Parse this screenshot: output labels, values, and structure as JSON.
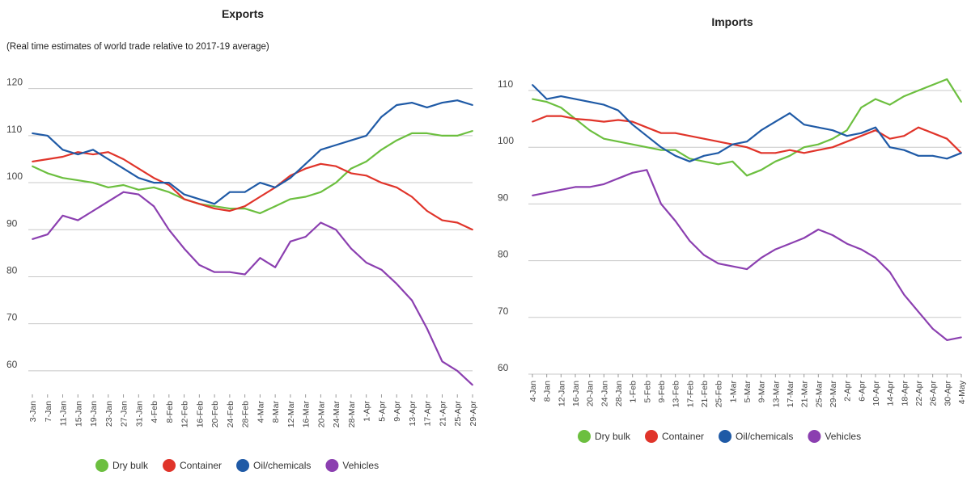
{
  "chart_data": [
    {
      "type": "line",
      "title": "Exports",
      "subtitle": "(Real time estimates of world trade relative to 2017-19 average)",
      "ylim": [
        55,
        122
      ],
      "yticks": [
        60,
        70,
        80,
        90,
        100,
        110,
        120
      ],
      "grid": true,
      "legend_position": "bottom",
      "x": [
        "3-Jan",
        "7-Jan",
        "11-Jan",
        "15-Jan",
        "19-Jan",
        "23-Jan",
        "27-Jan",
        "31-Jan",
        "4-Feb",
        "8-Feb",
        "12-Feb",
        "16-Feb",
        "20-Feb",
        "24-Feb",
        "28-Feb",
        "4-Mar",
        "8-Mar",
        "12-Mar",
        "16-Mar",
        "20-Mar",
        "24-Mar",
        "28-Mar",
        "1-Apr",
        "5-Apr",
        "9-Apr",
        "13-Apr",
        "17-Apr",
        "21-Apr",
        "25-Apr",
        "29-Apr"
      ],
      "series": [
        {
          "name": "Dry bulk",
          "color": "#6cbf3f",
          "values": [
            103.5,
            102,
            101,
            100.5,
            100,
            99,
            99.5,
            98.5,
            99,
            98,
            96.5,
            95.5,
            95,
            94.5,
            94.5,
            93.5,
            95,
            96.5,
            97,
            98,
            100,
            103,
            104.5,
            107,
            109,
            110.5,
            110.5,
            110,
            110,
            111
          ]
        },
        {
          "name": "Container",
          "color": "#e0342a",
          "values": [
            104.5,
            105,
            105.5,
            106.5,
            106,
            106.5,
            105,
            103,
            101,
            99.5,
            96.5,
            95.5,
            94.5,
            94,
            95,
            97,
            99,
            101.5,
            103,
            104,
            103.5,
            102,
            101.5,
            100,
            99,
            97,
            94,
            92,
            91.5,
            90
          ]
        },
        {
          "name": "Oil/chemicals",
          "color": "#1f5aa6",
          "values": [
            110.5,
            110,
            107,
            106,
            107,
            105,
            103,
            101,
            100,
            100,
            97.5,
            96.5,
            95.5,
            98,
            98,
            100,
            99,
            101,
            104,
            107,
            108,
            109,
            110,
            114,
            116.5,
            117,
            116,
            117,
            117.5,
            116.5
          ]
        },
        {
          "name": "Vehicles",
          "color": "#8b3fb0",
          "values": [
            88,
            89,
            93,
            92,
            94,
            96,
            98,
            97.5,
            95,
            90,
            86,
            82.5,
            81,
            81,
            80.5,
            84,
            82,
            87.5,
            88.5,
            91.5,
            90,
            86,
            83,
            81.5,
            78.5,
            75,
            69,
            62,
            60,
            57
          ]
        }
      ]
    },
    {
      "type": "line",
      "title": "Imports",
      "ylim": [
        60,
        112
      ],
      "yticks": [
        60,
        70,
        80,
        90,
        100,
        110
      ],
      "grid": true,
      "legend_position": "bottom",
      "x": [
        "4-Jan",
        "8-Jan",
        "12-Jan",
        "16-Jan",
        "20-Jan",
        "24-Jan",
        "28-Jan",
        "1-Feb",
        "5-Feb",
        "9-Feb",
        "13-Feb",
        "17-Feb",
        "21-Feb",
        "25-Feb",
        "1-Mar",
        "5-Mar",
        "9-Mar",
        "13-Mar",
        "17-Mar",
        "21-Mar",
        "25-Mar",
        "29-Mar",
        "2-Apr",
        "6-Apr",
        "10-Apr",
        "14-Apr",
        "18-Apr",
        "22-Apr",
        "26-Apr",
        "30-Apr",
        "4-May"
      ],
      "series": [
        {
          "name": "Dry bulk",
          "color": "#6cbf3f",
          "values": [
            108.5,
            108,
            107,
            105,
            103,
            101.5,
            101,
            100.5,
            100,
            99.5,
            99.5,
            98,
            97.5,
            97,
            97.5,
            95,
            96,
            97.5,
            98.5,
            100,
            100.5,
            101.5,
            103,
            107,
            108.5,
            107.5,
            109,
            110,
            111,
            112,
            108
          ]
        },
        {
          "name": "Container",
          "color": "#e0342a",
          "values": [
            104.5,
            105.5,
            105.5,
            105,
            104.8,
            104.5,
            104.8,
            104.5,
            103.5,
            102.5,
            102.5,
            102,
            101.5,
            101,
            100.5,
            100,
            99,
            99,
            99.5,
            99,
            99.5,
            100,
            101,
            102,
            103,
            101.5,
            102,
            103.5,
            102.5,
            101.5,
            99
          ]
        },
        {
          "name": "Oil/chemicals",
          "color": "#1f5aa6",
          "values": [
            111,
            108.5,
            109,
            108.5,
            108,
            107.5,
            106.5,
            104,
            102,
            100,
            98.5,
            97.5,
            98.5,
            99,
            100.5,
            101,
            103,
            104.5,
            106,
            104,
            103.5,
            103,
            102,
            102.5,
            103.5,
            100,
            99.5,
            98.5,
            98.5,
            98,
            99
          ]
        },
        {
          "name": "Vehicles",
          "color": "#8b3fb0",
          "values": [
            91.5,
            92,
            92.5,
            93,
            93,
            93.5,
            94.5,
            95.5,
            96,
            90,
            87,
            83.5,
            81,
            79.5,
            79,
            78.5,
            80.5,
            82,
            83,
            84,
            85.5,
            84.5,
            83,
            82,
            80.5,
            78,
            74,
            71,
            68,
            66,
            66.5
          ]
        }
      ]
    }
  ]
}
